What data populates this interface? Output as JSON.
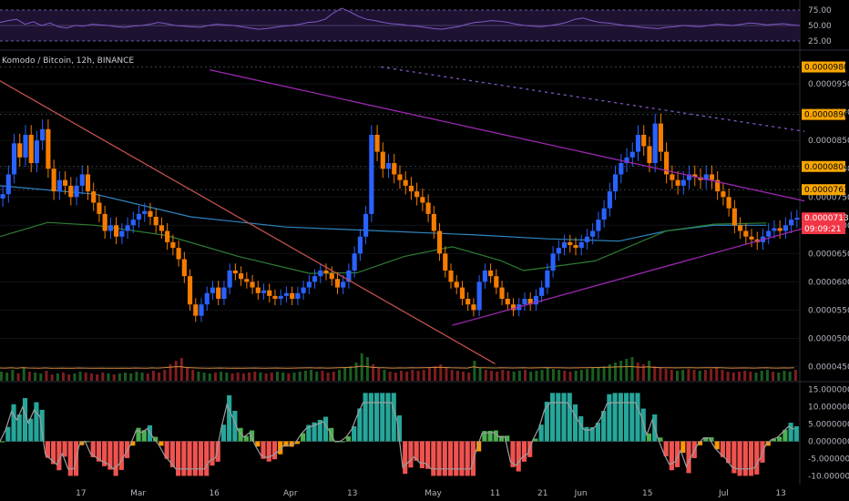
{
  "chart_data": {
    "type": "candlestick",
    "title": "Komodo / Bitcoin, 12h, BINANCE",
    "price_axis": {
      "ticks": [
        "0.0000450",
        "0.0000500",
        "0.0000550",
        "0.0000600",
        "0.0000650",
        "0.0000700",
        "0.0000750",
        "0.0000800",
        "0.0000850",
        "0.0000900",
        "0.0000950"
      ],
      "ylim": [
        4.25e-05,
        0.0001005
      ]
    },
    "price_tags": [
      {
        "label": "0.0000980",
        "value": 9.8e-05,
        "color": "#f7a600"
      },
      {
        "label": "0.0000896",
        "value": 8.96e-05,
        "color": "#f7a600"
      },
      {
        "label": "0.0000804",
        "value": 8.04e-05,
        "color": "#f7a600"
      },
      {
        "label": "0.0000763",
        "value": 7.63e-05,
        "color": "#f7a600"
      },
      {
        "label": "0.0000713",
        "value": 7.13e-05,
        "color": "#f23645"
      },
      {
        "label": "09:09:21",
        "value": 6.94e-05,
        "color": "#f23645"
      }
    ],
    "rsi_axis": {
      "ticks": [
        "75.00",
        "50.00",
        "25.00"
      ],
      "ylim": [
        25,
        75
      ]
    },
    "osc_axis": {
      "ticks": [
        "15.0000000",
        "10.0000000",
        "5.0000000",
        "0.0000000",
        "-5.0000000",
        "-10.0000000"
      ],
      "ylim": [
        -12,
        17
      ]
    },
    "x_labels": [
      "17",
      "Mar",
      "16",
      "Apr",
      "13",
      "May",
      "11",
      "21",
      "Jun",
      "15",
      "Jul",
      "13"
    ],
    "x_label_day": [
      17,
      29,
      45,
      61,
      74,
      91,
      104,
      114,
      122,
      136,
      152,
      164
    ],
    "day_count": 168,
    "ma_fast": [
      [
        0,
        7.7e-05
      ],
      [
        20,
        7.55e-05
      ],
      [
        40,
        7.15e-05
      ],
      [
        60,
        6.97e-05
      ],
      [
        80,
        6.9e-05
      ],
      [
        100,
        6.83e-05
      ],
      [
        115,
        6.76e-05
      ],
      [
        130,
        6.72e-05
      ],
      [
        140,
        6.9e-05
      ],
      [
        150,
        7e-05
      ],
      [
        161,
        7e-05
      ]
    ],
    "ma_slow": [
      [
        0,
        6.8e-05
      ],
      [
        10,
        7.05e-05
      ],
      [
        20,
        7e-05
      ],
      [
        35,
        6.82e-05
      ],
      [
        50,
        6.45e-05
      ],
      [
        65,
        6.15e-05
      ],
      [
        75,
        6.16e-05
      ],
      [
        85,
        6.45e-05
      ],
      [
        95,
        6.62e-05
      ],
      [
        105,
        6.38e-05
      ],
      [
        110,
        6.2e-05
      ],
      [
        125,
        6.37e-05
      ],
      [
        140,
        6.9e-05
      ],
      [
        150,
        7.02e-05
      ],
      [
        161,
        7.04e-05
      ]
    ],
    "trendlines": [
      {
        "from": [
          -2,
          9.65e-05
        ],
        "to": [
          104,
          4.55e-05
        ],
        "color": "#c0504d",
        "style": "solid"
      },
      {
        "from": [
          44,
          9.75e-05
        ],
        "to": [
          169,
          7.43e-05
        ],
        "color": "#9c27b0",
        "style": "solid"
      },
      {
        "from": [
          95,
          5.23e-05
        ],
        "to": [
          169,
          6.95e-05
        ],
        "color": "#9c27b0",
        "style": "solid"
      },
      {
        "from": [
          80,
          9.8e-05
        ],
        "to": [
          169,
          8.66e-05
        ],
        "color": "#7e57c2",
        "style": "dashed"
      }
    ],
    "candles_close": [
      7.55e-05,
      7.9e-05,
      8.45e-05,
      8.2e-05,
      8.6e-05,
      8.1e-05,
      8.5e-05,
      8.7e-05,
      8e-05,
      7.6e-05,
      7.8e-05,
      7.7e-05,
      7.5e-05,
      7.7e-05,
      7.9e-05,
      7.6e-05,
      7.4e-05,
      7.2e-05,
      6.9e-05,
      7e-05,
      6.8e-05,
      6.9e-05,
      7e-05,
      7.1e-05,
      7.2e-05,
      7.25e-05,
      7.15e-05,
      7e-05,
      6.9e-05,
      6.7e-05,
      6.6e-05,
      6.4e-05,
      6.1e-05,
      5.6e-05,
      5.4e-05,
      5.6e-05,
      5.8e-05,
      5.9e-05,
      5.7e-05,
      5.9e-05,
      6.2e-05,
      6.15e-05,
      6.05e-05,
      6e-05,
      5.9e-05,
      5.8e-05,
      5.85e-05,
      5.75e-05,
      5.7e-05,
      5.75e-05,
      5.8e-05,
      5.7e-05,
      5.8e-05,
      5.9e-05,
      6e-05,
      6.1e-05,
      6.2e-05,
      6.15e-05,
      6.05e-05,
      5.9e-05,
      6e-05,
      6.2e-05,
      6.5e-05,
      6.8e-05,
      7.2e-05,
      8.6e-05,
      8.3e-05,
      8e-05,
      8.1e-05,
      7.9e-05,
      7.8e-05,
      7.7e-05,
      7.6e-05,
      7.5e-05,
      7.4e-05,
      7.2e-05,
      6.9e-05,
      6.5e-05,
      6.2e-05,
      6e-05,
      5.9e-05,
      5.7e-05,
      5.6e-05,
      5.5e-05,
      6e-05,
      6.2e-05,
      6.1e-05,
      5.9e-05,
      5.7e-05,
      5.6e-05,
      5.5e-05,
      5.6e-05,
      5.7e-05,
      5.6e-05,
      5.75e-05,
      5.9e-05,
      6.2e-05,
      6.5e-05,
      6.6e-05,
      6.7e-05,
      6.65e-05,
      6.6e-05,
      6.7e-05,
      6.8e-05,
      6.9e-05,
      7.1e-05,
      7.3e-05,
      7.6e-05,
      7.9e-05,
      8.1e-05,
      8.2e-05,
      8.3e-05,
      8.6e-05,
      8.4e-05,
      8.1e-05,
      8.8e-05,
      8.3e-05,
      7.9e-05,
      7.8e-05,
      7.7e-05,
      7.8e-05,
      7.9e-05,
      7.85e-05,
      7.8e-05,
      7.9e-05,
      7.8e-05,
      7.6e-05,
      7.5e-05,
      7.3e-05,
      7e-05,
      6.9e-05,
      6.8e-05,
      6.75e-05,
      6.7e-05,
      6.8e-05,
      6.9e-05,
      6.95e-05,
      6.9e-05,
      7e-05,
      7.1e-05,
      7.13e-05
    ],
    "volume": [
      10,
      9,
      12,
      8,
      14,
      10,
      9,
      8,
      11,
      7,
      8,
      9,
      7,
      8,
      10,
      9,
      8,
      7,
      9,
      8,
      7,
      8,
      9,
      8,
      10,
      9,
      8,
      11,
      9,
      12,
      18,
      22,
      25,
      15,
      12,
      10,
      9,
      8,
      9,
      10,
      9,
      8,
      9,
      8,
      9,
      10,
      9,
      8,
      9,
      10,
      9,
      8,
      9,
      10,
      11,
      12,
      10,
      11,
      9,
      10,
      12,
      14,
      16,
      20,
      30,
      26,
      18,
      14,
      12,
      10,
      9,
      11,
      10,
      12,
      11,
      12,
      14,
      16,
      18,
      15,
      12,
      11,
      10,
      9,
      22,
      14,
      12,
      11,
      10,
      12,
      11,
      10,
      11,
      12,
      10,
      11,
      12,
      14,
      13,
      12,
      11,
      10,
      11,
      12,
      13,
      14,
      15,
      16,
      18,
      20,
      22,
      24,
      26,
      20,
      18,
      22,
      16,
      14,
      13,
      12,
      11,
      12,
      13,
      12,
      11,
      12,
      13,
      14,
      12,
      10,
      9,
      10,
      11,
      10,
      9,
      11,
      12,
      10,
      9,
      11,
      10,
      12
    ],
    "rsi": [
      55,
      58,
      60,
      52,
      56,
      50,
      54,
      48,
      46,
      50,
      49,
      52,
      51,
      50,
      48,
      47,
      49,
      50,
      52,
      55,
      53,
      50,
      49,
      48,
      47,
      50,
      52,
      51,
      50,
      48,
      46,
      44,
      45,
      47,
      49,
      50,
      52,
      55,
      56,
      60,
      70,
      78,
      72,
      65,
      60,
      58,
      55,
      53,
      52,
      50,
      49,
      47,
      45,
      44,
      46,
      48,
      52,
      55,
      56,
      58,
      57,
      55,
      52,
      50,
      49,
      48,
      50,
      52,
      55,
      60,
      62,
      58,
      55,
      54,
      52,
      50,
      49,
      47,
      46,
      45,
      47,
      48,
      50,
      49,
      48,
      50,
      52,
      51,
      50,
      52,
      54,
      53,
      51,
      52,
      53,
      51,
      50
    ]
  }
}
